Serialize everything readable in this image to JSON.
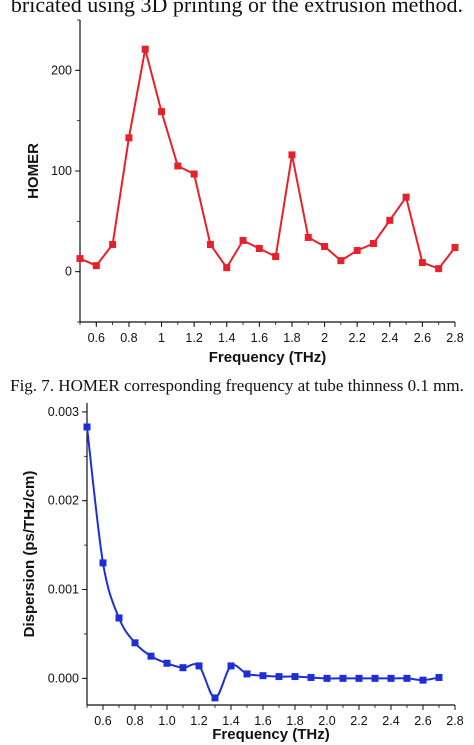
{
  "page": {
    "top_text": "bricated using 3D printing or the extrusion method.",
    "caption": "Fig. 7. HOMER corresponding frequency at tube thinness 0.1 mm."
  },
  "chart_data": [
    {
      "type": "line",
      "color": "#e8202a",
      "marker": "square",
      "xlabel": "Frequency (THz)",
      "ylabel": "HOMER",
      "xlim": [
        0.5,
        2.8
      ],
      "ylim": [
        -50,
        250
      ],
      "xticks": [
        0.6,
        0.8,
        1.0,
        1.2,
        1.4,
        1.6,
        1.8,
        2.0,
        2.2,
        2.4,
        2.6,
        2.8
      ],
      "xtick_labels": [
        "0.6",
        "0.8",
        "1",
        "1.2",
        "1.4",
        "1.6",
        "1.8",
        "2",
        "2.2",
        "2.4",
        "2.6",
        "2.8"
      ],
      "yticks": [
        0,
        100,
        200
      ],
      "ytick_labels": [
        "0",
        "100",
        "200"
      ],
      "grid": false,
      "series": [
        {
          "x": [
            0.5,
            0.6,
            0.7,
            0.8,
            0.9,
            1.0,
            1.1,
            1.2,
            1.3,
            1.4,
            1.5,
            1.6,
            1.7,
            1.8,
            1.9,
            2.0,
            2.1,
            2.2,
            2.3,
            2.4,
            2.5,
            2.6,
            2.7,
            2.8
          ],
          "values": [
            13,
            6,
            27,
            133,
            221,
            159,
            105,
            97,
            27,
            4,
            31,
            23,
            15,
            116,
            34,
            25,
            11,
            21,
            28,
            51,
            74,
            9,
            3,
            24
          ]
        }
      ]
    },
    {
      "type": "line",
      "color": "#1f2fd8",
      "marker": "square",
      "xlabel": "Frequency (THz)",
      "ylabel": "Dispersion (ps/THz/cm)",
      "xlim": [
        0.5,
        2.8
      ],
      "ylim": [
        -0.0003,
        0.0031
      ],
      "xticks": [
        0.6,
        0.8,
        1.0,
        1.2,
        1.4,
        1.6,
        1.8,
        2.0,
        2.2,
        2.4,
        2.6,
        2.8
      ],
      "xtick_labels": [
        "0.6",
        "0.8",
        "1.0",
        "1.2",
        "1.4",
        "1.6",
        "1.8",
        "2.0",
        "2.2",
        "2.4",
        "2.6",
        "2.8"
      ],
      "yticks": [
        0.0,
        0.001,
        0.002,
        0.003
      ],
      "ytick_labels": [
        "0.000",
        "0.001",
        "0.002",
        "0.003"
      ],
      "grid": false,
      "series": [
        {
          "x": [
            0.5,
            0.6,
            0.7,
            0.8,
            0.9,
            1.0,
            1.1,
            1.2,
            1.3,
            1.4,
            1.5,
            1.6,
            1.7,
            1.8,
            1.9,
            2.0,
            2.1,
            2.2,
            2.3,
            2.4,
            2.5,
            2.6,
            2.7
          ],
          "values": [
            0.00283,
            0.0013,
            0.00068,
            0.0004,
            0.00025,
            0.00017,
            0.00012,
            0.00014,
            -0.00022,
            0.00014,
            5e-05,
            3e-05,
            2e-05,
            2e-05,
            1e-05,
            0.0,
            0.0,
            0.0,
            0.0,
            0.0,
            0.0,
            -2e-05,
            1e-05
          ]
        }
      ]
    }
  ]
}
